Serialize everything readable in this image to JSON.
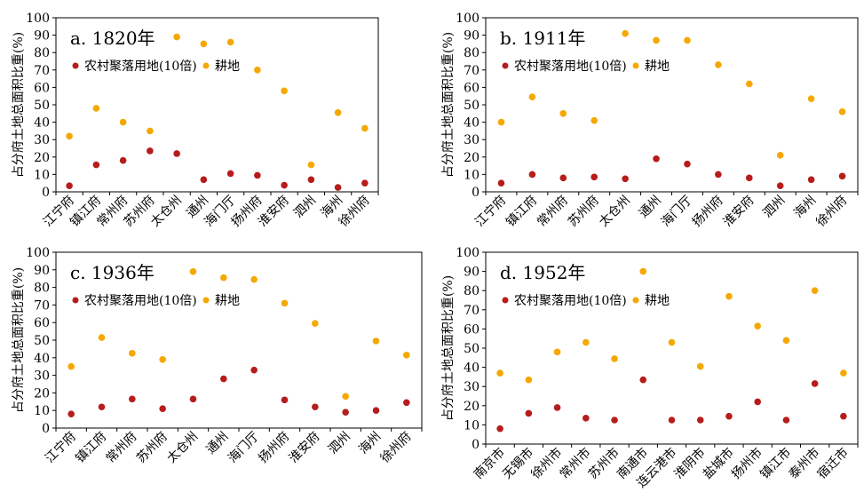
{
  "y_axis_label": "占分府土地总面积比重(%)",
  "colors": {
    "settlement": "#b71c1c",
    "farmland": "#f5a800"
  },
  "chart_data": [
    {
      "type": "scatter",
      "title": "a. 1820年",
      "ylabel": "占分府土地总面积比重(%)",
      "ylim": [
        0,
        100
      ],
      "yticks": [
        0,
        10,
        20,
        30,
        40,
        50,
        60,
        70,
        80,
        90,
        100
      ],
      "categories": [
        "江宁府",
        "镇江府",
        "常州府",
        "苏州府",
        "太仓州",
        "通州",
        "海门厅",
        "扬州府",
        "淮安府",
        "泗州",
        "海州",
        "徐州府"
      ],
      "series": [
        {
          "name": "农村聚落用地(10倍)",
          "values": [
            3.5,
            15.5,
            18,
            23.5,
            22,
            7,
            10.5,
            9.5,
            3.8,
            7,
            2.5,
            5
          ]
        },
        {
          "name": "耕地",
          "values": [
            32,
            48,
            40,
            35,
            89,
            85,
            86,
            70,
            58,
            15.5,
            45.5,
            36.5
          ]
        }
      ]
    },
    {
      "type": "scatter",
      "title": "b. 1911年",
      "ylabel": "占分府土地总面积比重(%)",
      "ylim": [
        0,
        100
      ],
      "yticks": [
        0,
        10,
        20,
        30,
        40,
        50,
        60,
        70,
        80,
        90,
        100
      ],
      "categories": [
        "江宁府",
        "镇江府",
        "常州府",
        "苏州府",
        "太仓州",
        "通州",
        "海门厅",
        "扬州府",
        "淮安府",
        "泗州",
        "海州",
        "徐州府"
      ],
      "series": [
        {
          "name": "农村聚落用地(10倍)",
          "values": [
            5,
            10,
            8,
            8.5,
            7.5,
            19,
            16,
            10,
            8,
            3.5,
            7,
            9
          ]
        },
        {
          "name": "耕地",
          "values": [
            40,
            54.5,
            45,
            41,
            91,
            87,
            87,
            73,
            62,
            21,
            53.5,
            46
          ]
        }
      ]
    },
    {
      "type": "scatter",
      "title": "c. 1936年",
      "ylabel": "占分府土地总面积比重(%)",
      "ylim": [
        0,
        100
      ],
      "yticks": [
        0,
        10,
        20,
        30,
        40,
        50,
        60,
        70,
        80,
        90,
        100
      ],
      "categories": [
        "江宁府",
        "镇江府",
        "常州府",
        "苏州府",
        "太仓州",
        "通州",
        "海门厅",
        "扬州府",
        "淮安府",
        "泗州",
        "海州",
        "徐州府"
      ],
      "series": [
        {
          "name": "农村聚落用地(10倍)",
          "values": [
            8,
            12,
            16.5,
            11,
            16.5,
            28,
            33,
            16,
            12,
            9,
            10,
            14.5
          ]
        },
        {
          "name": "耕地",
          "values": [
            35,
            51.5,
            42.5,
            39,
            89,
            85.5,
            84.5,
            71,
            59.5,
            18,
            49.5,
            41.5
          ]
        }
      ]
    },
    {
      "type": "scatter",
      "title": "d. 1952年",
      "ylabel": "占分府土地总面积比重(%)",
      "ylim": [
        0,
        100
      ],
      "yticks": [
        0,
        10,
        20,
        30,
        40,
        50,
        60,
        70,
        80,
        90,
        100
      ],
      "categories": [
        "南京市",
        "无锡市",
        "徐州市",
        "常州市",
        "苏州市",
        "南通市",
        "连云港市",
        "淮阴市",
        "盐城市",
        "扬州市",
        "镇江市",
        "泰州市",
        "宿迁市"
      ],
      "series": [
        {
          "name": "农村聚落用地(10倍)",
          "values": [
            8,
            16,
            19,
            13.5,
            12.5,
            33.5,
            12.5,
            12.5,
            14.5,
            22,
            12.5,
            31.5,
            14.5
          ]
        },
        {
          "name": "耕地",
          "values": [
            37,
            33.5,
            48,
            53,
            44.5,
            90,
            53,
            40.5,
            77,
            61.5,
            54,
            80,
            37
          ]
        }
      ]
    }
  ]
}
